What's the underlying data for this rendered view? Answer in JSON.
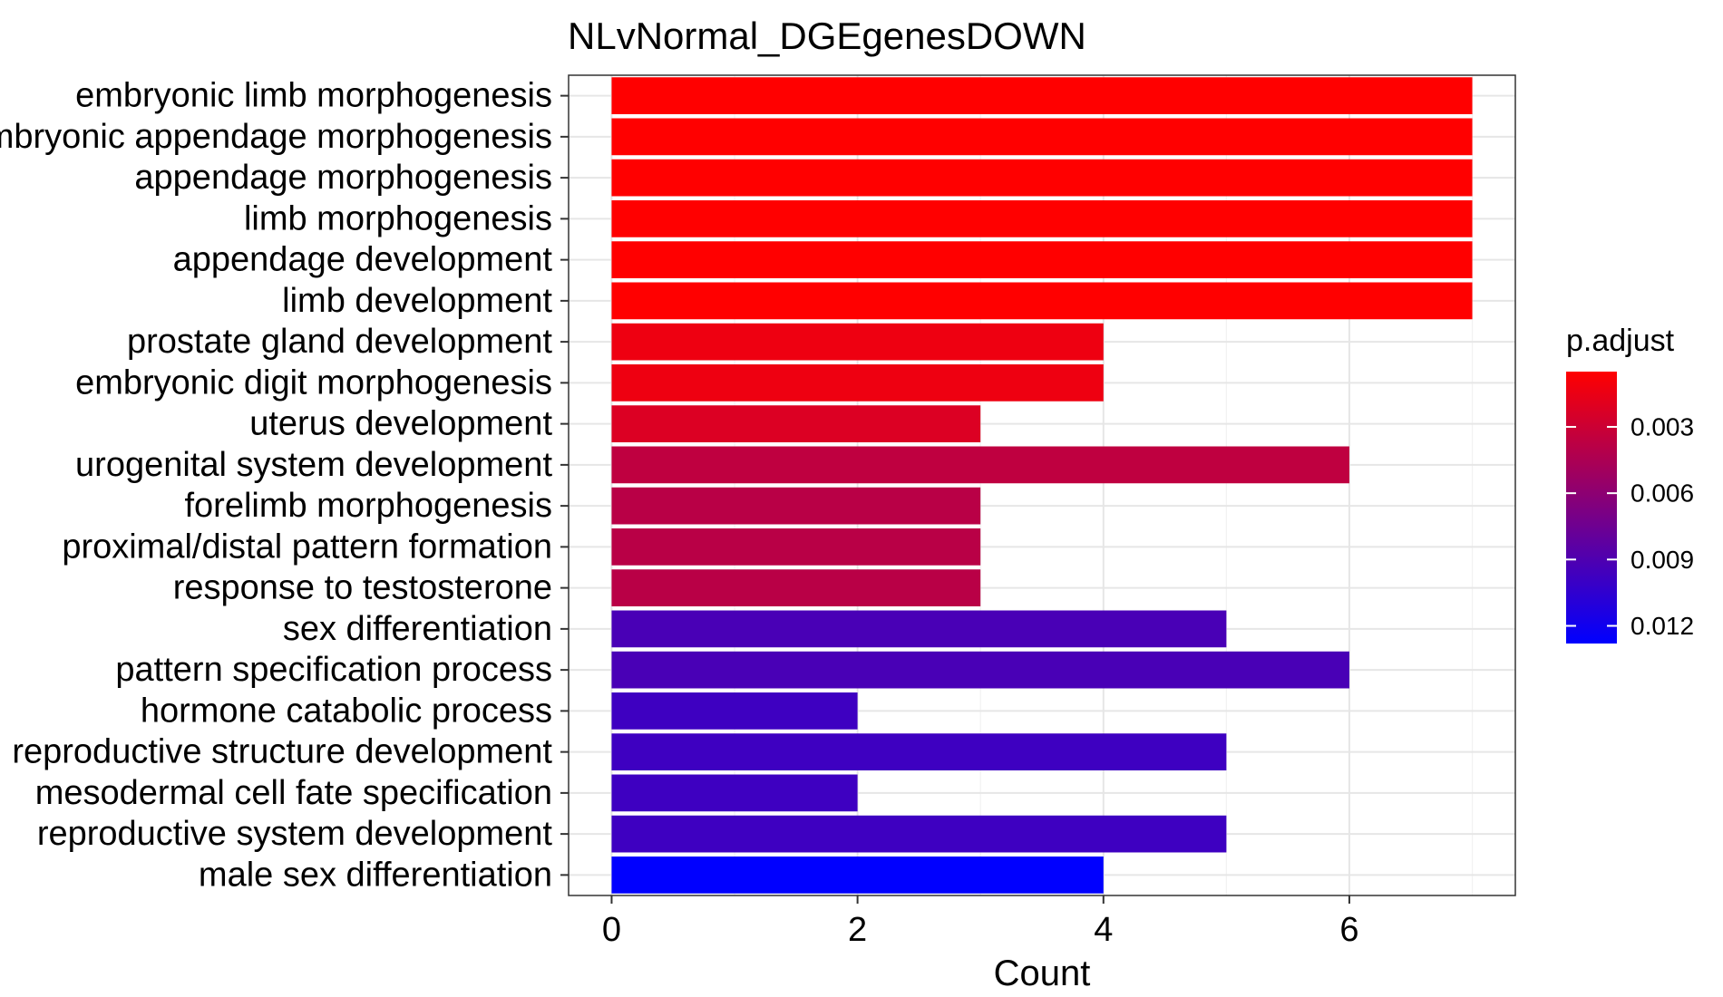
{
  "chart_data": {
    "type": "bar",
    "orientation": "horizontal",
    "title": "NLvNormal_DGEgenesDOWN",
    "xlabel": "Count",
    "ylabel": "",
    "xlim": [
      -0.35,
      7.35
    ],
    "xticks": [
      "0",
      "2",
      "4",
      "6"
    ],
    "grid": true,
    "legend_position": "right",
    "legend": {
      "title": "p.adjust",
      "ticks": [
        "0.003",
        "0.006",
        "0.009",
        "0.012"
      ],
      "colors": [
        "#FF0000",
        "#0000FF"
      ]
    },
    "categories": [
      "embryonic limb morphogenesis",
      "embryonic appendage morphogenesis",
      "appendage morphogenesis",
      "limb morphogenesis",
      "appendage development",
      "limb development",
      "prostate gland development",
      "embryonic digit morphogenesis",
      "uterus development",
      "urogenital system development",
      "forelimb morphogenesis",
      "proximal/distal pattern formation",
      "response to testosterone",
      "sex differentiation",
      "pattern specification process",
      "hormone catabolic process",
      "reproductive structure development",
      "mesodermal cell fate specification",
      "reproductive system development",
      "male sex differentiation"
    ],
    "values": [
      7,
      7,
      7,
      7,
      7,
      7,
      4,
      4,
      3,
      6,
      3,
      3,
      3,
      5,
      6,
      2,
      5,
      2,
      5,
      4
    ],
    "p_adjust": [
      0.0005,
      0.0005,
      0.0005,
      0.0005,
      0.0005,
      0.0005,
      0.0013,
      0.0013,
      0.0022,
      0.0036,
      0.0039,
      0.0039,
      0.0039,
      0.0093,
      0.0093,
      0.0098,
      0.0098,
      0.0098,
      0.0098,
      0.0128
    ]
  }
}
